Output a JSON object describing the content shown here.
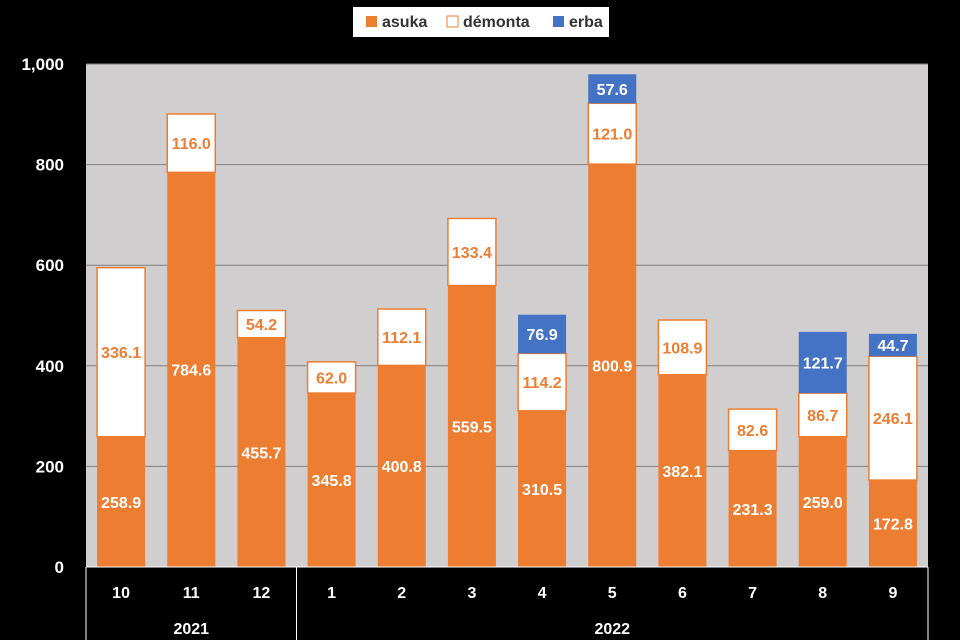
{
  "chart_data": {
    "type": "bar",
    "stacked": true,
    "categories": [
      "10",
      "11",
      "12",
      "1",
      "2",
      "3",
      "4",
      "5",
      "6",
      "7",
      "8",
      "9"
    ],
    "groups": [
      {
        "label": "2021",
        "categories": [
          "10",
          "11",
          "12"
        ]
      },
      {
        "label": "2022",
        "categories": [
          "1",
          "2",
          "3",
          "4",
          "5",
          "6",
          "7",
          "8",
          "9"
        ]
      }
    ],
    "series": [
      {
        "name": "asuka",
        "color": "#ed7d31",
        "label_color": "#ffffff",
        "values": [
          258.9,
          784.6,
          455.7,
          345.8,
          400.8,
          559.5,
          310.5,
          800.9,
          382.1,
          231.3,
          259.0,
          172.8
        ]
      },
      {
        "name": "démonta",
        "color": "#ffffff",
        "border": "#ed7d31",
        "label_color": "#ed7d31",
        "values": [
          336.1,
          116.0,
          54.2,
          62.0,
          112.1,
          133.4,
          114.2,
          121.0,
          108.9,
          82.6,
          86.7,
          246.1
        ]
      },
      {
        "name": "erba",
        "color": "#4472c4",
        "label_color": "#ffffff",
        "values": [
          null,
          null,
          null,
          null,
          null,
          null,
          76.9,
          57.6,
          null,
          null,
          121.7,
          44.7
        ]
      }
    ],
    "data_labels": [
      [
        "258.9",
        "784.6",
        "455.7",
        "345.8",
        "400.8",
        "559.5",
        "310.5",
        "800.9",
        "382.1",
        "231.3",
        "259.0",
        "172.8"
      ],
      [
        "336.1",
        "116.0",
        "54.2",
        "62.0",
        "112.1",
        "133.4",
        "114.2",
        "121.0",
        "108.9",
        "82.6",
        "86.7",
        "246.1"
      ],
      [
        null,
        null,
        null,
        null,
        null,
        null,
        "76.9",
        "57.6",
        null,
        null,
        "121.7",
        "44.7"
      ]
    ],
    "ylim": [
      0,
      1000
    ],
    "yticks": [
      0,
      200,
      400,
      600,
      800,
      1000
    ],
    "ytick_labels": [
      "0",
      "200",
      "400",
      "600",
      "800",
      "1,000"
    ],
    "grid": true,
    "plot_background": "#d0cece",
    "background": "#000000",
    "legend_position": "top-center",
    "title": "",
    "xlabel": "",
    "ylabel": ""
  }
}
